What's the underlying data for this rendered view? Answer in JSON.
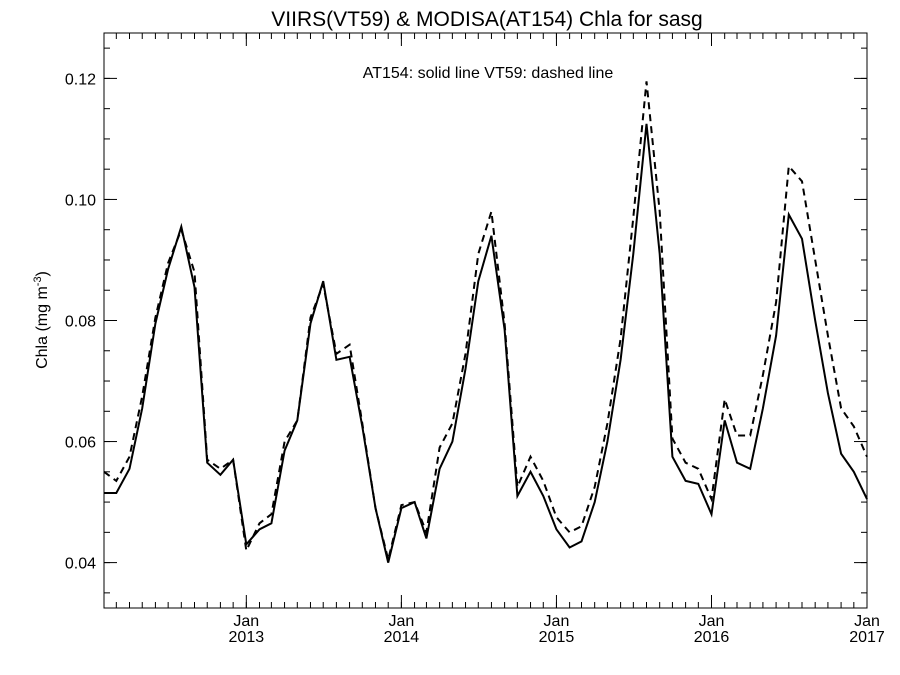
{
  "chart_data": {
    "type": "line",
    "title": "VIIRS(VT59) & MODISA(AT154)  Chla for sasg",
    "annotation": "AT154: solid line   VT59: dashed line",
    "ylabel_main": "Chla (mg m",
    "ylabel_sup": "-3",
    "ylabel_close": ")",
    "xlabel": "",
    "xlim": [
      "2012-02-01",
      "2017-01-01"
    ],
    "ylim": [
      0.0325,
      0.1275
    ],
    "grid": false,
    "y_ticks": [
      {
        "value": 0.04,
        "label": "0.04"
      },
      {
        "value": 0.06,
        "label": "0.06"
      },
      {
        "value": 0.08,
        "label": "0.08"
      },
      {
        "value": 0.1,
        "label": "0.10"
      },
      {
        "value": 0.12,
        "label": "0.12"
      }
    ],
    "y_minor_step": 0.005,
    "x_major_ticks": [
      {
        "date": "2013-01-01",
        "month": "Jan",
        "year": "2013"
      },
      {
        "date": "2014-01-01",
        "month": "Jan",
        "year": "2014"
      },
      {
        "date": "2015-01-01",
        "month": "Jan",
        "year": "2015"
      },
      {
        "date": "2016-01-01",
        "month": "Jan",
        "year": "2016"
      },
      {
        "date": "2017-01-01",
        "month": "Jan",
        "year": "2017"
      }
    ],
    "series": [
      {
        "name": "AT154",
        "style": "solid",
        "points": [
          [
            "2012-02-01",
            0.0515
          ],
          [
            "2012-03-01",
            0.0515
          ],
          [
            "2012-04-01",
            0.0555
          ],
          [
            "2012-05-01",
            0.0655
          ],
          [
            "2012-06-01",
            0.0795
          ],
          [
            "2012-07-01",
            0.0885
          ],
          [
            "2012-08-01",
            0.0955
          ],
          [
            "2012-09-01",
            0.0855
          ],
          [
            "2012-10-01",
            0.0565
          ],
          [
            "2012-11-01",
            0.0545
          ],
          [
            "2012-12-01",
            0.057
          ],
          [
            "2013-01-01",
            0.043
          ],
          [
            "2013-02-01",
            0.0455
          ],
          [
            "2013-03-01",
            0.0465
          ],
          [
            "2013-04-01",
            0.0585
          ],
          [
            "2013-05-01",
            0.0635
          ],
          [
            "2013-06-01",
            0.0795
          ],
          [
            "2013-07-01",
            0.0865
          ],
          [
            "2013-08-01",
            0.0735
          ],
          [
            "2013-09-01",
            0.074
          ],
          [
            "2013-10-01",
            0.0625
          ],
          [
            "2013-11-01",
            0.049
          ],
          [
            "2013-12-01",
            0.04
          ],
          [
            "2014-01-01",
            0.049
          ],
          [
            "2014-02-01",
            0.05
          ],
          [
            "2014-03-01",
            0.044
          ],
          [
            "2014-04-01",
            0.0555
          ],
          [
            "2014-05-01",
            0.06
          ],
          [
            "2014-06-01",
            0.072
          ],
          [
            "2014-07-01",
            0.0865
          ],
          [
            "2014-08-01",
            0.094
          ],
          [
            "2014-09-01",
            0.0785
          ],
          [
            "2014-10-01",
            0.051
          ],
          [
            "2014-11-01",
            0.055
          ],
          [
            "2014-12-01",
            0.051
          ],
          [
            "2015-01-01",
            0.0455
          ],
          [
            "2015-02-01",
            0.0425
          ],
          [
            "2015-03-01",
            0.0435
          ],
          [
            "2015-04-01",
            0.05
          ],
          [
            "2015-05-01",
            0.06
          ],
          [
            "2015-06-01",
            0.0735
          ],
          [
            "2015-07-01",
            0.091
          ],
          [
            "2015-08-01",
            0.1125
          ],
          [
            "2015-09-01",
            0.091
          ],
          [
            "2015-10-01",
            0.0575
          ],
          [
            "2015-11-01",
            0.0535
          ],
          [
            "2015-12-01",
            0.053
          ],
          [
            "2016-01-01",
            0.048
          ],
          [
            "2016-02-01",
            0.0635
          ],
          [
            "2016-03-01",
            0.0565
          ],
          [
            "2016-04-01",
            0.0555
          ],
          [
            "2016-05-01",
            0.0655
          ],
          [
            "2016-06-01",
            0.0775
          ],
          [
            "2016-07-01",
            0.0975
          ],
          [
            "2016-08-01",
            0.0935
          ],
          [
            "2016-09-01",
            0.08
          ],
          [
            "2016-10-01",
            0.068
          ],
          [
            "2016-11-01",
            0.058
          ],
          [
            "2016-12-01",
            0.055
          ],
          [
            "2017-01-01",
            0.0505
          ]
        ]
      },
      {
        "name": "VT59",
        "style": "dashed",
        "points": [
          [
            "2012-02-01",
            0.055
          ],
          [
            "2012-03-01",
            0.0535
          ],
          [
            "2012-04-01",
            0.0575
          ],
          [
            "2012-05-01",
            0.0675
          ],
          [
            "2012-06-01",
            0.0805
          ],
          [
            "2012-07-01",
            0.0895
          ],
          [
            "2012-08-01",
            0.095
          ],
          [
            "2012-09-01",
            0.088
          ],
          [
            "2012-10-01",
            0.057
          ],
          [
            "2012-11-01",
            0.0555
          ],
          [
            "2012-12-01",
            0.057
          ],
          [
            "2013-01-01",
            0.042
          ],
          [
            "2013-02-01",
            0.0465
          ],
          [
            "2013-03-01",
            0.048
          ],
          [
            "2013-04-01",
            0.06
          ],
          [
            "2013-05-01",
            0.0635
          ],
          [
            "2013-06-01",
            0.0805
          ],
          [
            "2013-07-01",
            0.086
          ],
          [
            "2013-08-01",
            0.0745
          ],
          [
            "2013-09-01",
            0.076
          ],
          [
            "2013-10-01",
            0.063
          ],
          [
            "2013-11-01",
            0.049
          ],
          [
            "2013-12-01",
            0.0405
          ],
          [
            "2014-01-01",
            0.0495
          ],
          [
            "2014-02-01",
            0.05
          ],
          [
            "2014-03-01",
            0.045
          ],
          [
            "2014-04-01",
            0.059
          ],
          [
            "2014-05-01",
            0.063
          ],
          [
            "2014-06-01",
            0.0745
          ],
          [
            "2014-07-01",
            0.091
          ],
          [
            "2014-08-01",
            0.098
          ],
          [
            "2014-09-01",
            0.0795
          ],
          [
            "2014-10-01",
            0.0525
          ],
          [
            "2014-11-01",
            0.0575
          ],
          [
            "2014-12-01",
            0.0535
          ],
          [
            "2015-01-01",
            0.0475
          ],
          [
            "2015-02-01",
            0.045
          ],
          [
            "2015-03-01",
            0.046
          ],
          [
            "2015-04-01",
            0.0525
          ],
          [
            "2015-05-01",
            0.063
          ],
          [
            "2015-06-01",
            0.077
          ],
          [
            "2015-07-01",
            0.097
          ],
          [
            "2015-08-01",
            0.1195
          ],
          [
            "2015-09-01",
            0.098
          ],
          [
            "2015-10-01",
            0.0605
          ],
          [
            "2015-11-01",
            0.0565
          ],
          [
            "2015-12-01",
            0.0555
          ],
          [
            "2016-01-01",
            0.0505
          ],
          [
            "2016-02-01",
            0.067
          ],
          [
            "2016-03-01",
            0.061
          ],
          [
            "2016-04-01",
            0.061
          ],
          [
            "2016-05-01",
            0.071
          ],
          [
            "2016-06-01",
            0.083
          ],
          [
            "2016-07-01",
            0.1055
          ],
          [
            "2016-08-01",
            0.103
          ],
          [
            "2016-09-01",
            0.09
          ],
          [
            "2016-10-01",
            0.0775
          ],
          [
            "2016-11-01",
            0.0655
          ],
          [
            "2016-12-01",
            0.0625
          ],
          [
            "2017-01-01",
            0.0575
          ]
        ]
      }
    ]
  }
}
